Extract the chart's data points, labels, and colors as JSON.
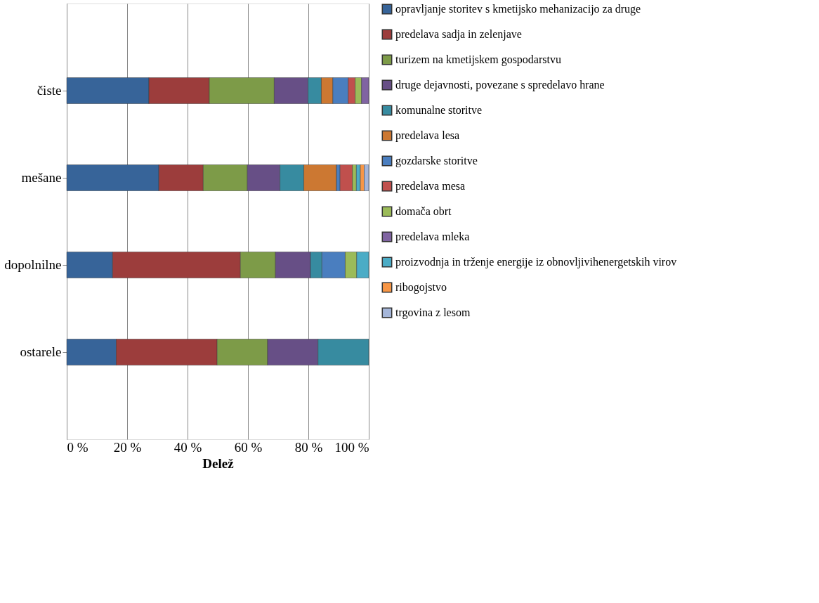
{
  "chart_data": {
    "type": "bar",
    "orientation": "horizontal",
    "stacked": true,
    "xlabel": "Delež",
    "categories": [
      "čiste",
      "mešane",
      "dopolnilne",
      "ostarele"
    ],
    "xlim": [
      0,
      100
    ],
    "xticks": [
      {
        "value": 0,
        "label": "0 %"
      },
      {
        "value": 20,
        "label": "20 %"
      },
      {
        "value": 40,
        "label": "40 %"
      },
      {
        "value": 60,
        "label": "60 %"
      },
      {
        "value": 80,
        "label": "80 %"
      },
      {
        "value": 100,
        "label": "100 %"
      }
    ],
    "grid": "x",
    "legend": "right",
    "series": [
      {
        "name": "opravljanje storitev s kmetijsko mehanizacijo za druge",
        "color": "#376499",
        "values": [
          27.2,
          30.5,
          15.2,
          16.4
        ]
      },
      {
        "name": "predelava sadja in zelenjave",
        "color": "#9c3d3c",
        "values": [
          20.0,
          14.7,
          42.3,
          33.4
        ]
      },
      {
        "name": "turizem na kmetijskem gospodarstvu",
        "color": "#7d9b48",
        "values": [
          21.5,
          14.6,
          11.6,
          16.7
        ]
      },
      {
        "name": "druge dejavnosti, povezane s spredelavo hrane",
        "color": "#674f86",
        "values": [
          11.2,
          10.8,
          11.6,
          16.7
        ]
      },
      {
        "name": "komunalne storitve",
        "color": "#378ba0",
        "values": [
          4.4,
          7.9,
          3.8,
          16.8
        ]
      },
      {
        "name": "predelava lesa",
        "color": "#cc7832",
        "values": [
          3.8,
          10.8,
          null,
          null
        ]
      },
      {
        "name": "gozdarske storitve",
        "color": "#4a7ebf",
        "values": [
          5.1,
          1.2,
          7.7,
          null
        ]
      },
      {
        "name": "predelava mesa",
        "color": "#c0504d",
        "values": [
          2.3,
          4.1,
          null,
          null
        ]
      },
      {
        "name": "domača obrt",
        "color": "#9bbb59",
        "values": [
          2.1,
          1.3,
          3.8,
          null
        ]
      },
      {
        "name": "predelava mleka",
        "color": "#8064a2",
        "values": [
          2.4,
          null,
          null,
          null
        ]
      },
      {
        "name": "proizvodnja in trženje energije iz obnovljivihenergetskih virov",
        "color": "#4bacc6",
        "values": [
          null,
          1.3,
          4.0,
          null
        ]
      },
      {
        "name": "ribogojstvo",
        "color": "#f79646",
        "values": [
          null,
          1.3,
          null,
          null
        ]
      },
      {
        "name": "trgovina z lesom",
        "color": "#a5b6d9",
        "values": [
          null,
          1.5,
          null,
          null
        ]
      }
    ]
  }
}
